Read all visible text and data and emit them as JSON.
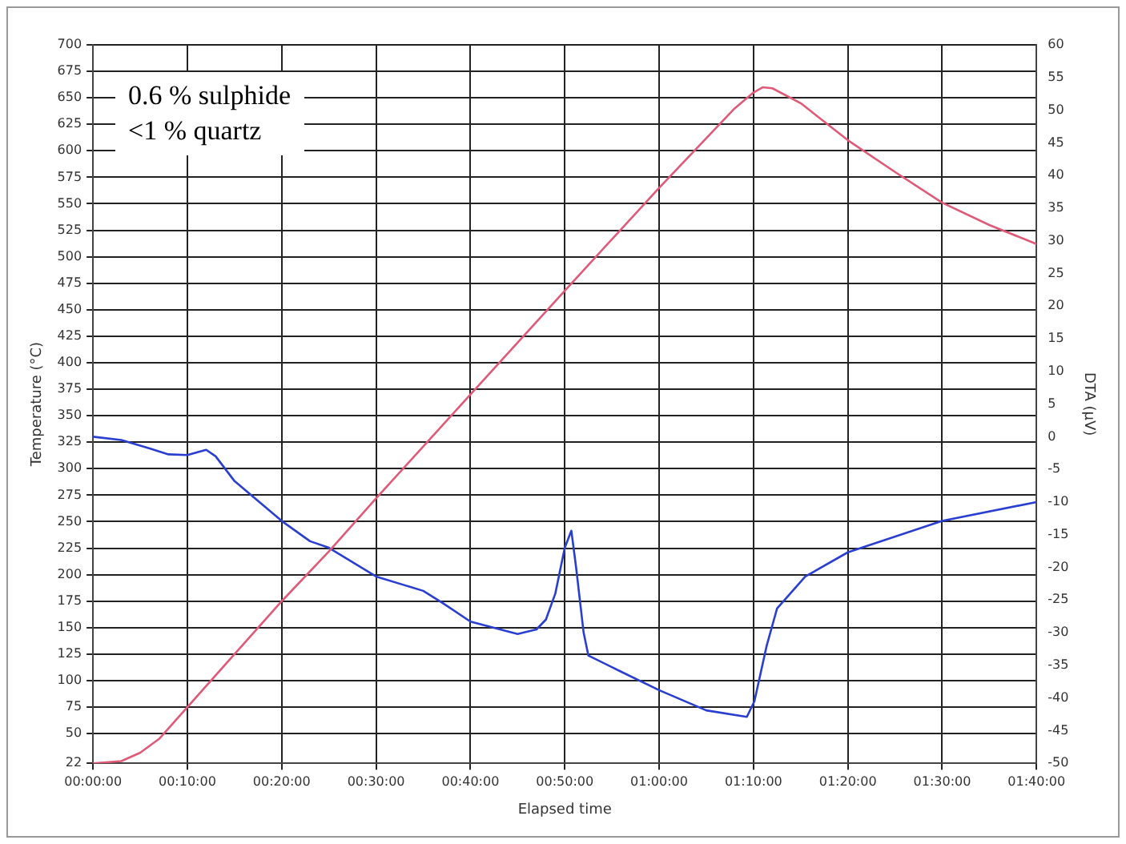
{
  "chart_data": {
    "type": "line",
    "xlabel": "Elapsed time",
    "ylabel": "Temperature (°C)",
    "y2label": "DTA (μV)",
    "annotations": [
      "0.6 % sulphide\n<1 % quartz"
    ],
    "xlim": [
      0,
      100
    ],
    "xticks": [
      {
        "value": 0,
        "label": "00:00:00"
      },
      {
        "value": 10,
        "label": "00:10:00"
      },
      {
        "value": 20,
        "label": "00:20:00"
      },
      {
        "value": 30,
        "label": "00:30:00"
      },
      {
        "value": 40,
        "label": "00:40:00"
      },
      {
        "value": 50,
        "label": "00:50:00"
      },
      {
        "value": 60,
        "label": "01:00:00"
      },
      {
        "value": 70,
        "label": "01:10:00"
      },
      {
        "value": 80,
        "label": "01:20:00"
      },
      {
        "value": 90,
        "label": "01:30:00"
      },
      {
        "value": 100,
        "label": "01:40:00"
      }
    ],
    "ylim": [
      22,
      700
    ],
    "yticks": [
      22,
      50,
      75,
      100,
      125,
      150,
      175,
      200,
      225,
      250,
      275,
      300,
      325,
      350,
      375,
      400,
      425,
      450,
      475,
      500,
      525,
      550,
      575,
      600,
      625,
      650,
      675,
      700
    ],
    "y2lim": [
      -50,
      60
    ],
    "y2ticks": [
      -50,
      -45,
      -40,
      -35,
      -30,
      -25,
      -20,
      -15,
      -10,
      -5,
      0,
      5,
      10,
      15,
      20,
      25,
      30,
      35,
      40,
      45,
      50,
      55,
      60
    ],
    "grid": true,
    "marker": "none",
    "line_style": "solid",
    "series": [
      {
        "color": "#e05a78",
        "x": [
          0,
          3,
          5,
          7,
          10,
          15,
          20,
          25,
          30,
          40,
          50,
          60,
          68,
          70,
          71,
          72,
          75,
          80,
          85,
          90,
          95,
          100
        ],
        "values": [
          22,
          24,
          32,
          45,
          75,
          125,
          175,
          222,
          272,
          370,
          468,
          565,
          640,
          655,
          660,
          659,
          645,
          610,
          580,
          551,
          530,
          512
        ]
      },
      {
        "color": "#2a3fd0",
        "axis": "y2",
        "x": [
          0,
          3,
          6,
          8,
          10,
          12,
          13,
          15,
          20,
          23,
          25,
          30,
          35,
          37,
          40,
          45,
          47,
          48,
          49,
          50,
          50.7,
          51.2,
          52,
          52.5,
          56,
          60,
          65,
          69.3,
          70.1,
          71.4,
          72.5,
          75.5,
          80,
          90,
          100
        ],
        "values": [
          0,
          -0.5,
          -1.8,
          -2.7,
          -2.8,
          -2,
          -3,
          -6.8,
          -12.9,
          -16,
          -17,
          -21.4,
          -23.6,
          -25.4,
          -28.3,
          -30.2,
          -29.5,
          -28,
          -24,
          -17,
          -14.4,
          -20,
          -30,
          -33.5,
          -36,
          -38.8,
          -41.9,
          -42.9,
          -40.5,
          -32,
          -26.3,
          -21.4,
          -17.7,
          -12.9,
          -10
        ]
      }
    ]
  }
}
